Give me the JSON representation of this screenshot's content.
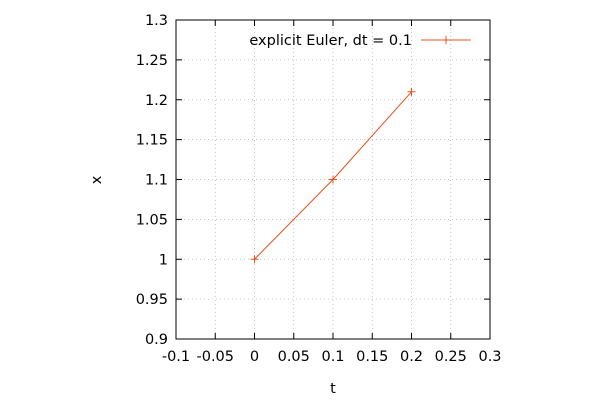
{
  "chart_data": {
    "type": "line",
    "xlabel": "t",
    "ylabel": "x",
    "xlim": [
      -0.1,
      0.3
    ],
    "ylim": [
      0.9,
      1.3
    ],
    "x_ticks": [
      -0.1,
      -0.05,
      0,
      0.05,
      0.1,
      0.15,
      0.2,
      0.25,
      0.3
    ],
    "x_tick_labels": [
      "-0.1",
      "-0.05",
      "0",
      "0.05",
      "0.1",
      "0.15",
      "0.2",
      "0.25",
      "0.3"
    ],
    "y_ticks": [
      0.9,
      0.95,
      1,
      1.05,
      1.1,
      1.15,
      1.2,
      1.25,
      1.3
    ],
    "y_tick_labels": [
      "0.9",
      "0.95",
      "1",
      "1.05",
      "1.1",
      "1.15",
      "1.2",
      "1.25",
      "1.3"
    ],
    "grid": true,
    "legend_position": "top-right",
    "series": [
      {
        "name": "explicit Euler, dt = 0.1",
        "color": "#e8501b",
        "marker": "plus",
        "x": [
          0,
          0.1,
          0.2
        ],
        "y": [
          1.0,
          1.1,
          1.21
        ]
      }
    ]
  }
}
